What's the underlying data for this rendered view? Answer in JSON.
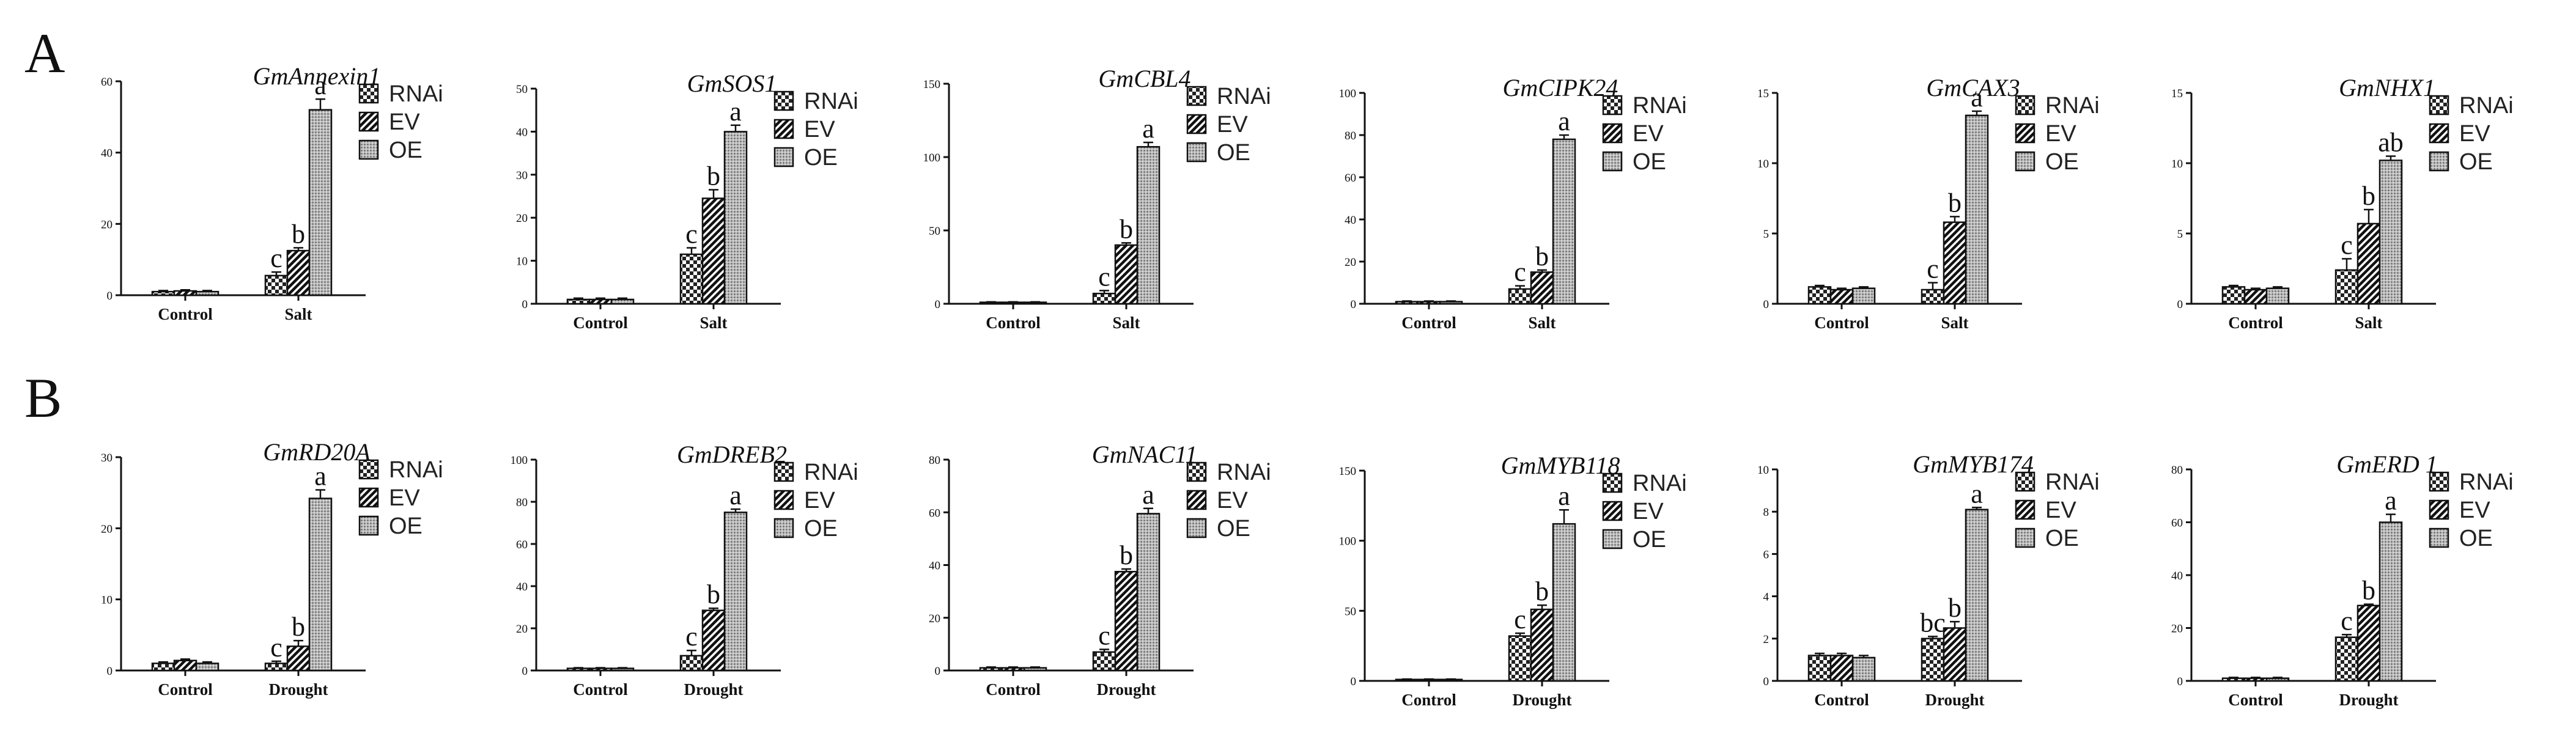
{
  "panels": [
    {
      "letter": "A",
      "category": "Salt"
    },
    {
      "letter": "B",
      "category": "Drought"
    }
  ],
  "legend": [
    "RNAi",
    "EV",
    "OE"
  ],
  "chart_data": [
    {
      "type": "bar",
      "panel": "A",
      "title": "GmAnnexin1",
      "categories": [
        "Control",
        "Salt"
      ],
      "ylim": [
        0,
        60
      ],
      "yticks": [
        0,
        20,
        40,
        60
      ],
      "series": [
        {
          "name": "RNAi",
          "values": [
            1.0,
            5.5
          ],
          "errors": [
            0.3,
            1.0
          ]
        },
        {
          "name": "EV",
          "values": [
            1.2,
            12.5
          ],
          "errors": [
            0.3,
            0.8
          ]
        },
        {
          "name": "OE",
          "values": [
            1.0,
            52.0
          ],
          "errors": [
            0.3,
            3.0
          ]
        }
      ],
      "letters": [
        [
          "c",
          "b",
          "a"
        ]
      ]
    },
    {
      "type": "bar",
      "panel": "A",
      "title": "GmSOS1",
      "categories": [
        "Control",
        "Salt"
      ],
      "ylim": [
        0,
        50
      ],
      "yticks": [
        0,
        10,
        20,
        30,
        40,
        50
      ],
      "series": [
        {
          "name": "RNAi",
          "values": [
            1.0,
            11.5
          ],
          "errors": [
            0.3,
            1.5
          ]
        },
        {
          "name": "EV",
          "values": [
            1.0,
            24.5
          ],
          "errors": [
            0.3,
            2.0
          ]
        },
        {
          "name": "OE",
          "values": [
            1.0,
            40.0
          ],
          "errors": [
            0.3,
            1.5
          ]
        }
      ],
      "letters": [
        [
          "c",
          "b",
          "a"
        ]
      ]
    },
    {
      "type": "bar",
      "panel": "A",
      "title": "GmCBL4",
      "categories": [
        "Control",
        "Salt"
      ],
      "ylim": [
        0,
        150
      ],
      "yticks": [
        0,
        50,
        100,
        150
      ],
      "series": [
        {
          "name": "RNAi",
          "values": [
            1.0,
            7.0
          ],
          "errors": [
            0.3,
            2.0
          ]
        },
        {
          "name": "EV",
          "values": [
            1.0,
            40.0
          ],
          "errors": [
            0.3,
            1.5
          ]
        },
        {
          "name": "OE",
          "values": [
            1.0,
            107.0
          ],
          "errors": [
            0.3,
            3.0
          ]
        }
      ],
      "letters": [
        [
          "c",
          "b",
          "a"
        ]
      ]
    },
    {
      "type": "bar",
      "panel": "A",
      "title": "GmCIPK24",
      "categories": [
        "Control",
        "Salt"
      ],
      "ylim": [
        0,
        100
      ],
      "yticks": [
        0,
        20,
        40,
        60,
        80,
        100
      ],
      "series": [
        {
          "name": "RNAi",
          "values": [
            1.0,
            7.0
          ],
          "errors": [
            0.3,
            1.5
          ]
        },
        {
          "name": "EV",
          "values": [
            1.0,
            15.0
          ],
          "errors": [
            0.3,
            1.0
          ]
        },
        {
          "name": "OE",
          "values": [
            1.0,
            78.0
          ],
          "errors": [
            0.3,
            2.0
          ]
        }
      ],
      "letters": [
        [
          "c",
          "b",
          "a"
        ]
      ]
    },
    {
      "type": "bar",
      "panel": "A",
      "title": "GmCAX3",
      "categories": [
        "Control",
        "Salt"
      ],
      "ylim": [
        0,
        15
      ],
      "yticks": [
        0,
        5,
        10,
        15
      ],
      "series": [
        {
          "name": "RNAi",
          "values": [
            1.2,
            1.0
          ],
          "errors": [
            0.1,
            0.5
          ]
        },
        {
          "name": "EV",
          "values": [
            1.0,
            5.8
          ],
          "errors": [
            0.1,
            0.4
          ]
        },
        {
          "name": "OE",
          "values": [
            1.1,
            13.4
          ],
          "errors": [
            0.1,
            0.3
          ]
        }
      ],
      "letters": [
        [
          "c",
          "b",
          "a"
        ]
      ]
    },
    {
      "type": "bar",
      "panel": "A",
      "title": "GmNHX1",
      "categories": [
        "Control",
        "Salt"
      ],
      "ylim": [
        0,
        15
      ],
      "yticks": [
        0,
        5,
        10,
        15
      ],
      "series": [
        {
          "name": "RNAi",
          "values": [
            1.2,
            2.4
          ],
          "errors": [
            0.1,
            0.8
          ]
        },
        {
          "name": "EV",
          "values": [
            1.0,
            5.7
          ],
          "errors": [
            0.1,
            1.0
          ]
        },
        {
          "name": "OE",
          "values": [
            1.1,
            10.2
          ],
          "errors": [
            0.1,
            0.3
          ]
        }
      ],
      "letters": [
        [
          "c",
          "b",
          "ab"
        ]
      ]
    },
    {
      "type": "bar",
      "panel": "B",
      "title": "GmRD20A",
      "categories": [
        "Control",
        "Drought"
      ],
      "ylim": [
        0,
        30
      ],
      "yticks": [
        0,
        10,
        20,
        30
      ],
      "series": [
        {
          "name": "RNAi",
          "values": [
            1.0,
            1.0
          ],
          "errors": [
            0.2,
            0.3
          ]
        },
        {
          "name": "EV",
          "values": [
            1.4,
            3.4
          ],
          "errors": [
            0.2,
            0.8
          ]
        },
        {
          "name": "OE",
          "values": [
            1.0,
            24.2
          ],
          "errors": [
            0.2,
            1.2
          ]
        }
      ],
      "letters": [
        [
          "c",
          "b",
          "a"
        ]
      ]
    },
    {
      "type": "bar",
      "panel": "B",
      "title": "GmDREB2",
      "categories": [
        "Control",
        "Drought"
      ],
      "ylim": [
        0,
        100
      ],
      "yticks": [
        0,
        20,
        40,
        60,
        80,
        100
      ],
      "series": [
        {
          "name": "RNAi",
          "values": [
            1.0,
            7.0
          ],
          "errors": [
            0.3,
            2.5
          ]
        },
        {
          "name": "EV",
          "values": [
            1.0,
            28.5
          ],
          "errors": [
            0.3,
            1.0
          ]
        },
        {
          "name": "OE",
          "values": [
            1.0,
            75.0
          ],
          "errors": [
            0.3,
            1.5
          ]
        }
      ],
      "letters": [
        [
          "c",
          "b",
          "a"
        ]
      ]
    },
    {
      "type": "bar",
      "panel": "B",
      "title": "GmNAC11",
      "categories": [
        "Control",
        "Drought"
      ],
      "ylim": [
        0,
        80
      ],
      "yticks": [
        0,
        20,
        40,
        60,
        80
      ],
      "series": [
        {
          "name": "RNAi",
          "values": [
            1.0,
            7.0
          ],
          "errors": [
            0.3,
            1.0
          ]
        },
        {
          "name": "EV",
          "values": [
            1.0,
            37.5
          ],
          "errors": [
            0.3,
            1.0
          ]
        },
        {
          "name": "OE",
          "values": [
            1.0,
            59.5
          ],
          "errors": [
            0.3,
            2.0
          ]
        }
      ],
      "letters": [
        [
          "c",
          "b",
          "a"
        ]
      ]
    },
    {
      "type": "bar",
      "panel": "B",
      "title": "GmMYB118",
      "categories": [
        "Control",
        "Drought"
      ],
      "ylim": [
        0,
        150
      ],
      "yticks": [
        0,
        50,
        100,
        150
      ],
      "series": [
        {
          "name": "RNAi",
          "values": [
            1.0,
            32.0
          ],
          "errors": [
            0.3,
            2.0
          ]
        },
        {
          "name": "EV",
          "values": [
            1.0,
            51.0
          ],
          "errors": [
            0.3,
            3.0
          ]
        },
        {
          "name": "OE",
          "values": [
            1.0,
            112.0
          ],
          "errors": [
            0.3,
            10.0
          ]
        }
      ],
      "letters": [
        [
          "c",
          "b",
          "a"
        ]
      ]
    },
    {
      "type": "bar",
      "panel": "B",
      "title": "GmMYB174",
      "categories": [
        "Control",
        "Drought"
      ],
      "ylim": [
        0,
        10
      ],
      "yticks": [
        0,
        2,
        4,
        6,
        8,
        10
      ],
      "series": [
        {
          "name": "RNAi",
          "values": [
            1.2,
            2.0
          ],
          "errors": [
            0.1,
            0.1
          ]
        },
        {
          "name": "EV",
          "values": [
            1.2,
            2.5
          ],
          "errors": [
            0.1,
            0.3
          ]
        },
        {
          "name": "OE",
          "values": [
            1.1,
            8.1
          ],
          "errors": [
            0.1,
            0.1
          ]
        }
      ],
      "letters": [
        [
          "bc",
          "b",
          "a"
        ]
      ]
    },
    {
      "type": "bar",
      "panel": "B",
      "title": "GmERD 1",
      "categories": [
        "Control",
        "Drought"
      ],
      "ylim": [
        0,
        80
      ],
      "yticks": [
        0,
        20,
        40,
        60,
        80
      ],
      "series": [
        {
          "name": "RNAi",
          "values": [
            1.0,
            16.5
          ],
          "errors": [
            0.3,
            1.0
          ]
        },
        {
          "name": "EV",
          "values": [
            1.0,
            28.5
          ],
          "errors": [
            0.3,
            0.5
          ]
        },
        {
          "name": "OE",
          "values": [
            1.0,
            60.0
          ],
          "errors": [
            0.3,
            3.0
          ]
        }
      ],
      "letters": [
        [
          "c",
          "b",
          "a"
        ]
      ]
    }
  ]
}
